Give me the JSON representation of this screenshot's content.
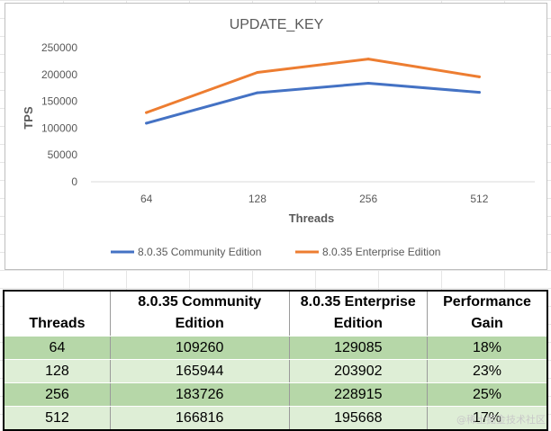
{
  "chart_data": {
    "type": "line",
    "title": "UPDATE_KEY",
    "xlabel": "Threads",
    "ylabel": "TPS",
    "categories": [
      "64",
      "128",
      "256",
      "512"
    ],
    "ylim": [
      0,
      250000
    ],
    "yticks": [
      "250000",
      "200000",
      "150000",
      "100000",
      "50000",
      "0"
    ],
    "ytick_values": [
      250000,
      200000,
      150000,
      100000,
      50000,
      0
    ],
    "grid": false,
    "legend_position": "bottom",
    "series": [
      {
        "name": "8.0.35 Community Edition",
        "color": "#4472c4",
        "values": [
          109260,
          165944,
          183726,
          166816
        ]
      },
      {
        "name": "8.0.35 Enterprise Edition",
        "color": "#ed7d31",
        "values": [
          129085,
          203902,
          228915,
          195668
        ]
      }
    ]
  },
  "table": {
    "headers": [
      [
        "Threads"
      ],
      [
        "8.0.35 Community",
        "Edition"
      ],
      [
        "8.0.35 Enterprise",
        "Edition"
      ],
      [
        "Performance",
        "Gain"
      ]
    ],
    "rows": [
      [
        "64",
        "109260",
        "129085",
        "18%"
      ],
      [
        "128",
        "165944",
        "203902",
        "23%"
      ],
      [
        "256",
        "183726",
        "228915",
        "25%"
      ],
      [
        "512",
        "166816",
        "195668",
        "17%"
      ]
    ],
    "row_colors": {
      "dark": "#b6d7a8",
      "light": "#deeed6"
    }
  },
  "watermark": "@稀土掘金技术社区"
}
